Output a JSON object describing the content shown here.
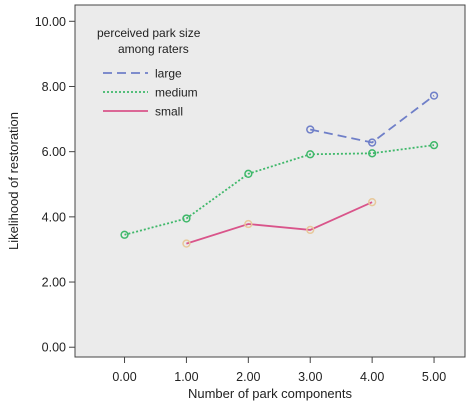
{
  "chart_data": {
    "type": "line",
    "title": "",
    "xlabel": "Number of park components",
    "ylabel": "Likelihood of restoration",
    "x_ticks": [
      "0.00",
      "1.00",
      "2.00",
      "3.00",
      "4.00",
      "5.00"
    ],
    "y_ticks": [
      "0.00",
      "2.00",
      "4.00",
      "6.00",
      "8.00",
      "10.00"
    ],
    "xlim": [
      -0.8,
      5.5
    ],
    "ylim": [
      -0.3,
      10.5
    ],
    "grid": false,
    "legend": {
      "title_line1": "perceived park size",
      "title_line2": "among raters",
      "placement": "top-left"
    },
    "series": [
      {
        "name": "large",
        "color": "#6f7fc8",
        "marker_color": "#6f7fc8",
        "dash": "9,5",
        "x": [
          3,
          4,
          5
        ],
        "y": [
          6.68,
          6.28,
          7.72
        ]
      },
      {
        "name": "medium",
        "color": "#3fb86a",
        "marker_color": "#3fb86a",
        "dash": "2,2",
        "x": [
          0,
          1,
          2,
          3,
          4,
          5
        ],
        "y": [
          3.45,
          3.95,
          5.32,
          5.92,
          5.95,
          6.2
        ]
      },
      {
        "name": "small",
        "color": "#d9548a",
        "marker_color": "#e8c89a",
        "dash": "",
        "x": [
          1,
          2,
          3,
          4
        ],
        "y": [
          3.18,
          3.78,
          3.6,
          4.45
        ]
      }
    ]
  }
}
